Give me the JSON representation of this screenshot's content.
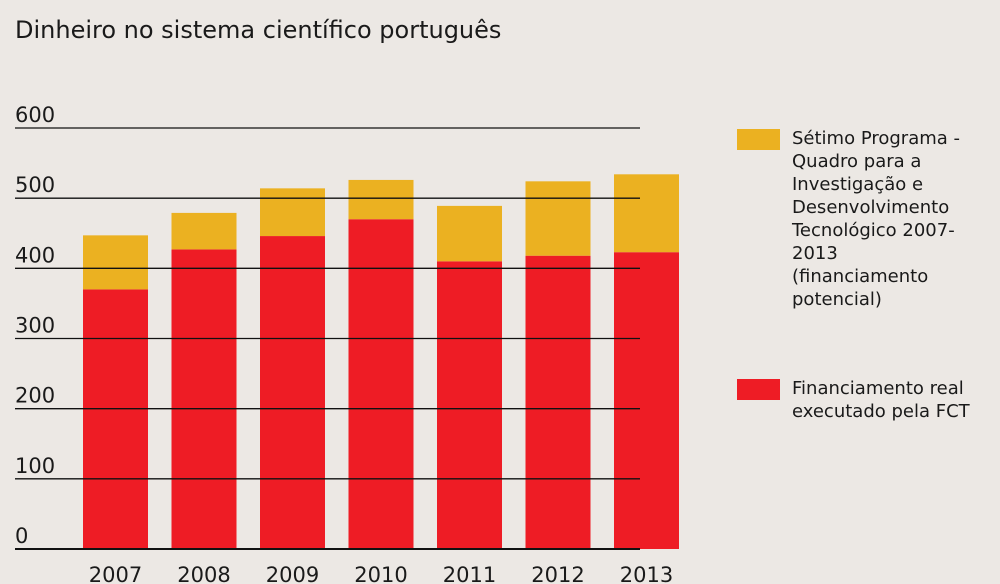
{
  "chart_data": {
    "type": "stacked_bar",
    "title": "Dinheiro no sistema científico português",
    "categories": [
      "2007",
      "2008",
      "2009",
      "2010",
      "2011",
      "2012",
      "2013"
    ],
    "series": [
      {
        "name": "Financiamento real executado pela FCT",
        "color": "#ee1c25",
        "values": [
          370,
          427,
          446,
          470,
          410,
          418,
          423
        ]
      },
      {
        "name": "Sétimo Programa -Quadro para a Investigação e Desenvolvimento Tecnológico 2007-2013 (financiamento potencial)",
        "color": "#ebb121",
        "values": [
          77,
          52,
          68,
          56,
          79,
          106,
          111
        ]
      }
    ],
    "ylim": [
      0,
      600
    ],
    "yticks": [
      0,
      100,
      200,
      300,
      400,
      500,
      600
    ],
    "grid": true
  }
}
